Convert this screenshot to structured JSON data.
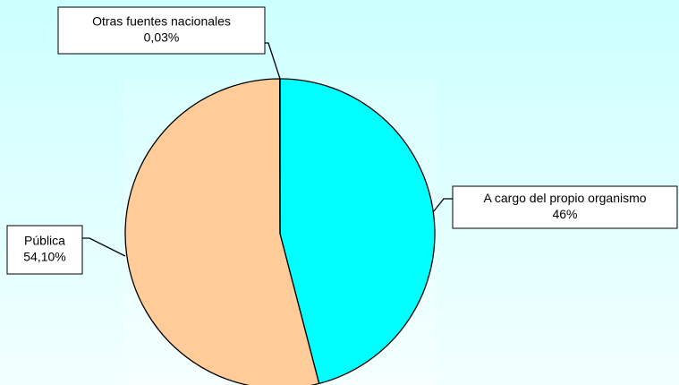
{
  "chart_data": {
    "type": "pie",
    "categories": [
      "A cargo del propio organismo",
      "Pública",
      "Otras fuentes nacionales"
    ],
    "values": [
      46,
      54.1,
      0.03
    ],
    "value_labels": [
      "46%",
      "54,10%",
      "0,03%"
    ],
    "colors": [
      "#00ffff",
      "#ffcc99",
      "#9999ff"
    ]
  }
}
